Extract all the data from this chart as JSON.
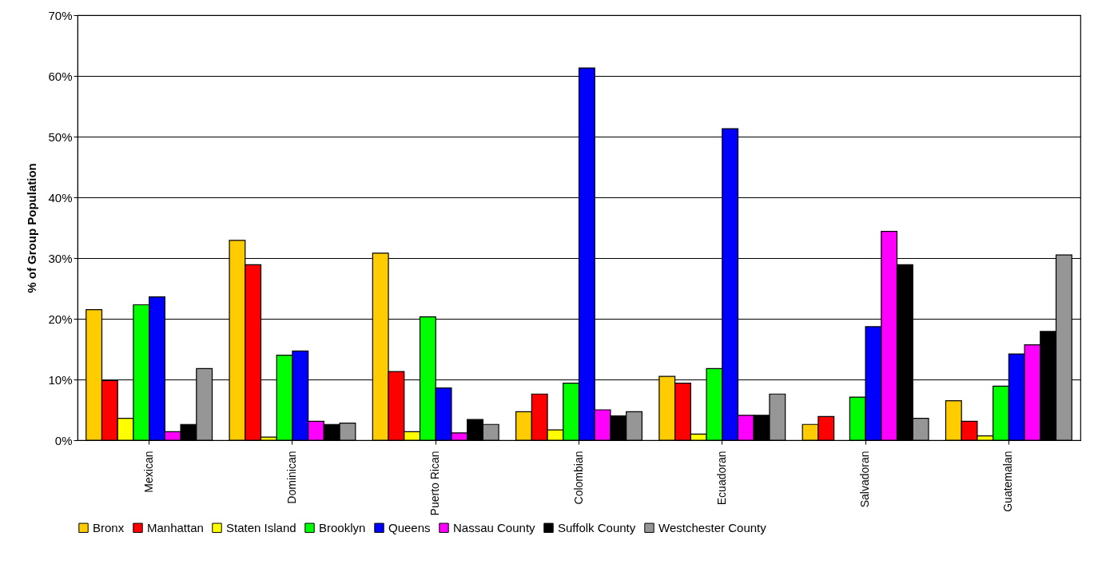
{
  "chart_data": {
    "type": "bar",
    "ylabel": "% of Group Population",
    "categories": [
      "Mexican",
      "Dominican",
      "Puerto Rican",
      "Colombian",
      "Ecuadoran",
      "Salvadoran",
      "Guatemalan"
    ],
    "series": [
      {
        "name": "Bronx",
        "color": "#ffcc00",
        "values": [
          21.5,
          32.9,
          30.8,
          4.7,
          10.5,
          2.6,
          6.5
        ]
      },
      {
        "name": "Manhattan",
        "color": "#ff0000",
        "values": [
          9.8,
          28.9,
          11.3,
          7.6,
          9.4,
          3.9,
          3.1
        ]
      },
      {
        "name": "Staten Island",
        "color": "#ffff00",
        "values": [
          3.6,
          0.5,
          1.4,
          1.7,
          1.0,
          null,
          0.7
        ]
      },
      {
        "name": "Brooklyn",
        "color": "#00ff00",
        "values": [
          22.3,
          14.0,
          20.3,
          9.4,
          11.8,
          7.1,
          8.9
        ]
      },
      {
        "name": "Queens",
        "color": "#0000ff",
        "values": [
          23.6,
          14.7,
          8.6,
          61.3,
          51.3,
          18.7,
          14.2
        ]
      },
      {
        "name": "Nassau County",
        "color": "#ff00ff",
        "values": [
          1.4,
          3.1,
          1.2,
          5.0,
          4.1,
          34.4,
          15.7
        ]
      },
      {
        "name": "Suffolk County",
        "color": "#000000",
        "values": [
          2.6,
          2.6,
          3.4,
          4.0,
          4.1,
          28.9,
          17.9
        ]
      },
      {
        "name": "Westchester County",
        "color": "#969696",
        "values": [
          11.8,
          2.8,
          2.6,
          4.7,
          7.6,
          3.6,
          30.5
        ]
      }
    ],
    "ylim": [
      0,
      70
    ],
    "yticks": [
      {
        "value": 0,
        "label": "0%"
      },
      {
        "value": 10,
        "label": "10%"
      },
      {
        "value": 20,
        "label": "20%"
      },
      {
        "value": 30,
        "label": "30%"
      },
      {
        "value": 40,
        "label": "40%"
      },
      {
        "value": 50,
        "label": "50%"
      },
      {
        "value": 60,
        "label": "60%"
      },
      {
        "value": 70,
        "label": "70%"
      }
    ],
    "grid": "y",
    "legend": "bottom"
  }
}
